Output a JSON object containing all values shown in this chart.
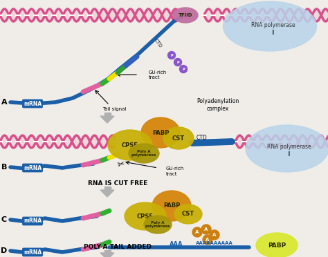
{
  "bg_color": "#f0ede8",
  "dna_color": "#d94f8a",
  "mrna_color": "#1a5fa8",
  "mrna_label": "mRNA",
  "step_labels": {
    "rna_cut": "RNA IS CUT FREE",
    "poly_a": "POLY-A TAIL ADDED"
  },
  "polyadenylation_label": "Polyadenylation\ncomplex",
  "tail_signal_label": "Tail signal",
  "gu_rich_label": "GU-rich\ntract",
  "rna_pol_label": "RNA polymerase\nII",
  "ctd_label": "CTD",
  "tfiid_color": "#c070a0",
  "rna_pol_color": "#b8d4ea",
  "cpsf_color": "#c8b808",
  "pabp_color": "#d4c818",
  "cst_color": "#c8b808",
  "polya_color": "#b0a000",
  "pabp_d_color": "#d8e830",
  "aauaaa_color": "#e060a0",
  "ca_color": "#30b030",
  "yellow_seg_color": "#f0e000",
  "gurich_seg_color": "#30a030",
  "blue_seg_color": "#3060c0",
  "arrow_color": "#b0b0b0",
  "p_circle_color": "#8855cc"
}
